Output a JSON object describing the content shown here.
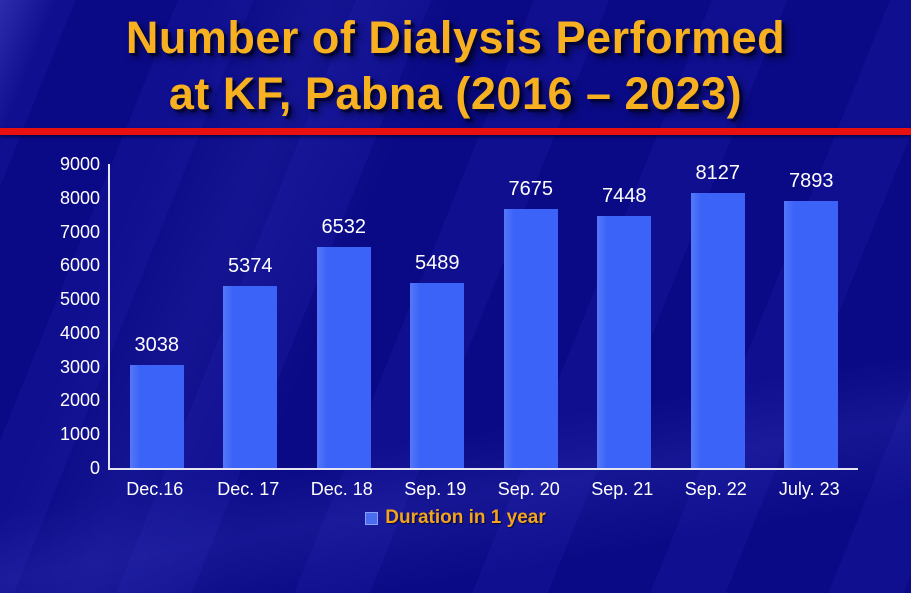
{
  "title": {
    "line1": "Number of Dialysis Performed",
    "line2": "at KF, Pabna (2016 – 2023)"
  },
  "chart_data": {
    "type": "bar",
    "categories": [
      "Dec.16",
      "Dec. 17",
      "Dec. 18",
      "Sep. 19",
      "Sep. 20",
      "Sep. 21",
      "Sep. 22",
      "July. 23"
    ],
    "values": [
      3038,
      5374,
      6532,
      5489,
      7675,
      7448,
      8127,
      7893
    ],
    "series_name": "Duration in 1 year",
    "title": "Number of Dialysis Performed at KF, Pabna (2016 – 2023)",
    "xlabel": "",
    "ylabel": "",
    "ylim": [
      0,
      9000
    ],
    "ytick_step": 1000,
    "grid": false,
    "legend_position": "bottom",
    "bar_color": "#3C63F7",
    "value_label_color": "#FFFFFF",
    "axis_label_color": "#FFFFFF",
    "legend_text_color": "#F2A41F",
    "background_color": "#0B0B8E",
    "title_color": "#F7B01F",
    "divider_color": "#E81110"
  }
}
